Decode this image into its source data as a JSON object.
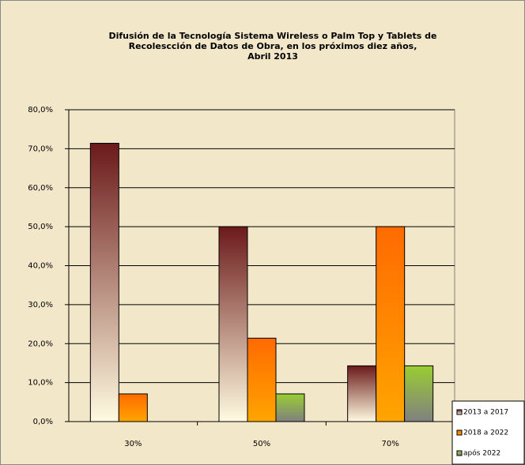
{
  "chart_data": {
    "type": "bar",
    "title": [
      "Difusión de la Tecnología Sistema Wireless o Palm Top y Tablets de",
      "Recolescción de Datos de Obra, en los próximos diez años,",
      "Abril 2013"
    ],
    "categories": [
      "30%",
      "50%",
      "70%"
    ],
    "series": [
      {
        "name": "2013 a 2017",
        "color": "#6b1a1a",
        "gradient_end": "#fffbe0",
        "values": [
          71.4,
          50.0,
          14.3
        ]
      },
      {
        "name": "2018 a 2022",
        "color": "#ff6a00",
        "gradient_end": "#ffa500",
        "values": [
          7.1,
          21.4,
          50.0
        ]
      },
      {
        "name": "após 2022",
        "color": "#9acd32",
        "gradient_end": "#808080",
        "values": [
          0,
          7.1,
          14.3
        ]
      }
    ],
    "ylim": [
      0,
      80
    ],
    "yticks": [
      {
        "value": 0,
        "label": "0,0%"
      },
      {
        "value": 10,
        "label": "10,0%"
      },
      {
        "value": 20,
        "label": "20,0%"
      },
      {
        "value": 30,
        "label": "30,0%"
      },
      {
        "value": 40,
        "label": "40,0%"
      },
      {
        "value": 50,
        "label": "50,0%"
      },
      {
        "value": 60,
        "label": "60,0%"
      },
      {
        "value": 70,
        "label": "70,0%"
      },
      {
        "value": 80,
        "label": "80,0%"
      }
    ],
    "grid": true,
    "legend": "bottom-right"
  }
}
